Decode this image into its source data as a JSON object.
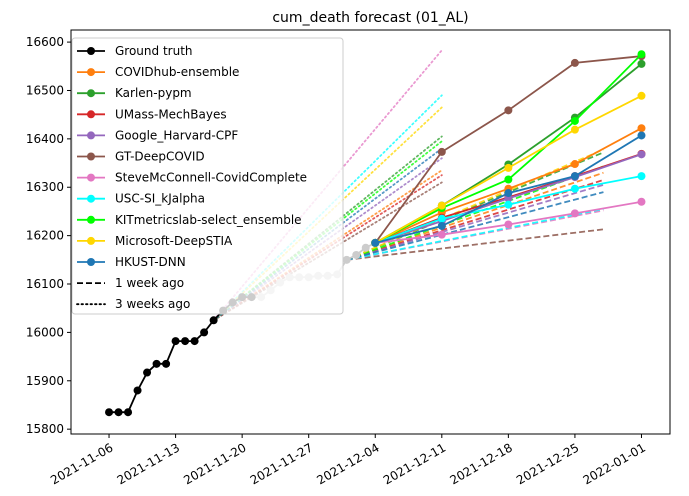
{
  "chart_data": {
    "type": "line",
    "title": "cum_death forecast (01_AL)",
    "xlabel": "",
    "ylabel": "",
    "x_ticks": [
      "2021-11-06",
      "2021-11-13",
      "2021-11-20",
      "2021-11-27",
      "2021-12-04",
      "2021-12-11",
      "2021-12-18",
      "2021-12-25",
      "2022-01-01"
    ],
    "y_ticks": [
      15800,
      15900,
      16000,
      16100,
      16200,
      16300,
      16400,
      16500,
      16600
    ],
    "xlim": [
      "2021-11-02",
      "2022-01-04"
    ],
    "ylim": [
      15790,
      16625
    ],
    "grid": false,
    "legend_position": "top-left",
    "ground_truth": {
      "name": "Ground truth",
      "color": "#000000",
      "x": [
        "2021-11-06",
        "2021-11-07",
        "2021-11-08",
        "2021-11-09",
        "2021-11-10",
        "2021-11-11",
        "2021-11-12",
        "2021-11-13",
        "2021-11-14",
        "2021-11-15",
        "2021-11-16",
        "2021-11-17",
        "2021-11-18",
        "2021-11-19",
        "2021-11-20",
        "2021-11-21",
        "2021-11-22",
        "2021-11-23",
        "2021-11-24",
        "2021-11-25",
        "2021-11-26",
        "2021-11-27",
        "2021-11-28",
        "2021-11-29",
        "2021-11-30",
        "2021-12-01",
        "2021-12-02",
        "2021-12-03",
        "2021-12-04"
      ],
      "y": [
        15835,
        15835,
        15835,
        15880,
        15917,
        15935,
        15935,
        15982,
        15982,
        15982,
        16000,
        16025,
        16045,
        16062,
        16073,
        16073,
        16073,
        16087,
        16103,
        16114,
        16114,
        16114,
        16117,
        16117,
        16120,
        16150,
        16160,
        16175,
        16185
      ],
      "highlighted_count": 16
    },
    "forecast_dates": [
      "2021-12-04",
      "2021-12-11",
      "2021-12-18",
      "2021-12-25",
      "2022-01-01"
    ],
    "series": [
      {
        "name": "COVIDhub-ensemble",
        "color": "#ff7f0e",
        "values": [
          16185,
          16248,
          16297,
          16348,
          16422
        ]
      },
      {
        "name": "Karlen-pypm",
        "color": "#2ca02c",
        "values": [
          16185,
          16262,
          16347,
          16444,
          16555
        ]
      },
      {
        "name": "UMass-MechBayes",
        "color": "#d62728",
        "values": [
          16185,
          16237,
          16279,
          16323,
          16369
        ]
      },
      {
        "name": "Google_Harvard-CPF",
        "color": "#9467bd",
        "values": [
          16185,
          16230,
          16277,
          16321,
          16368
        ]
      },
      {
        "name": "GT-DeepCOVID",
        "color": "#8c564b",
        "values": [
          16185,
          16373,
          16459,
          16557,
          16571
        ]
      },
      {
        "name": "SteveMcConnell-CovidComplete",
        "color": "#e377c2",
        "values": [
          16185,
          16202,
          16223,
          16246,
          16270
        ]
      },
      {
        "name": "USC-SI_kJalpha",
        "color": "#00ffff",
        "values": [
          16185,
          16235,
          16264,
          16297,
          16323
        ]
      },
      {
        "name": "KITmetricslab-select_ensemble",
        "color": "#00ff00",
        "values": [
          16185,
          16257,
          16316,
          16437,
          16575
        ]
      },
      {
        "name": "Microsoft-DeepSTIA",
        "color": "#ffd700",
        "values": [
          16185,
          16262,
          16340,
          16419,
          16489
        ]
      },
      {
        "name": "HKUST-DNN",
        "color": "#1f77b4",
        "values": [
          16185,
          16220,
          16288,
          16323,
          16407
        ]
      }
    ],
    "week1_forecasts": [
      {
        "color": "#ff7f0e",
        "start": [
          "2021-12-01",
          16150
        ],
        "end": [
          "2021-12-28",
          16330
        ]
      },
      {
        "color": "#2ca02c",
        "start": [
          "2021-12-01",
          16150
        ],
        "end": [
          "2021-12-28",
          16372
        ]
      },
      {
        "color": "#d62728",
        "start": [
          "2021-12-01",
          16150
        ],
        "end": [
          "2021-12-28",
          16315
        ]
      },
      {
        "color": "#9467bd",
        "start": [
          "2021-12-01",
          16150
        ],
        "end": [
          "2021-12-28",
          16305
        ]
      },
      {
        "color": "#8c564b",
        "start": [
          "2021-12-01",
          16150
        ],
        "end": [
          "2021-12-28",
          16213
        ]
      },
      {
        "color": "#e377c2",
        "start": [
          "2021-12-01",
          16150
        ],
        "end": [
          "2021-12-28",
          16252
        ]
      },
      {
        "color": "#00ffff",
        "start": [
          "2021-12-01",
          16150
        ],
        "end": [
          "2021-12-28",
          16255
        ]
      },
      {
        "color": "#00ff00",
        "start": [
          "2021-12-01",
          16150
        ],
        "end": [
          "2021-12-28",
          16343
        ]
      },
      {
        "color": "#ffd700",
        "start": [
          "2021-12-01",
          16150
        ],
        "end": [
          "2021-12-28",
          16378
        ]
      },
      {
        "color": "#1f77b4",
        "start": [
          "2021-12-01",
          16150
        ],
        "end": [
          "2021-12-28",
          16290
        ]
      }
    ],
    "week3_forecasts": [
      {
        "color": "#ff7f0e",
        "start": [
          "2021-11-17",
          16025
        ],
        "end": [
          "2021-12-11",
          16335
        ]
      },
      {
        "color": "#2ca02c",
        "start": [
          "2021-11-17",
          16025
        ],
        "end": [
          "2021-12-11",
          16405
        ]
      },
      {
        "color": "#d62728",
        "start": [
          "2021-11-17",
          16025
        ],
        "end": [
          "2021-12-11",
          16325
        ]
      },
      {
        "color": "#9467bd",
        "start": [
          "2021-11-17",
          16025
        ],
        "end": [
          "2021-12-11",
          16360
        ]
      },
      {
        "color": "#8c564b",
        "start": [
          "2021-11-17",
          16025
        ],
        "end": [
          "2021-12-11",
          16310
        ]
      },
      {
        "color": "#e377c2",
        "start": [
          "2021-11-17",
          16025
        ],
        "end": [
          "2021-12-11",
          16583
        ]
      },
      {
        "color": "#00ffff",
        "start": [
          "2021-11-17",
          16025
        ],
        "end": [
          "2021-12-11",
          16490
        ]
      },
      {
        "color": "#00ff00",
        "start": [
          "2021-11-17",
          16025
        ],
        "end": [
          "2021-12-11",
          16395
        ]
      },
      {
        "color": "#ffd700",
        "start": [
          "2021-11-17",
          16025
        ],
        "end": [
          "2021-12-11",
          16465
        ]
      },
      {
        "color": "#1f77b4",
        "start": [
          "2021-11-17",
          16025
        ],
        "end": [
          "2021-12-11",
          16380
        ]
      }
    ],
    "legend": [
      {
        "label": "Ground truth",
        "color": "#000000",
        "style": "solid-marker"
      },
      {
        "label": "COVIDhub-ensemble",
        "color": "#ff7f0e",
        "style": "solid-marker"
      },
      {
        "label": "Karlen-pypm",
        "color": "#2ca02c",
        "style": "solid-marker"
      },
      {
        "label": "UMass-MechBayes",
        "color": "#d62728",
        "style": "solid-marker"
      },
      {
        "label": "Google_Harvard-CPF",
        "color": "#9467bd",
        "style": "solid-marker"
      },
      {
        "label": "GT-DeepCOVID",
        "color": "#8c564b",
        "style": "solid-marker"
      },
      {
        "label": "SteveMcConnell-CovidComplete",
        "color": "#e377c2",
        "style": "solid-marker"
      },
      {
        "label": "USC-SI_kJalpha",
        "color": "#00ffff",
        "style": "solid-marker"
      },
      {
        "label": "KITmetricslab-select_ensemble",
        "color": "#00ff00",
        "style": "solid-marker"
      },
      {
        "label": "Microsoft-DeepSTIA",
        "color": "#ffd700",
        "style": "solid-marker"
      },
      {
        "label": "HKUST-DNN",
        "color": "#1f77b4",
        "style": "solid-marker"
      },
      {
        "label": "1 week ago",
        "color": "#000000",
        "style": "dashed"
      },
      {
        "label": "3 weeks ago",
        "color": "#000000",
        "style": "dotted"
      }
    ]
  }
}
